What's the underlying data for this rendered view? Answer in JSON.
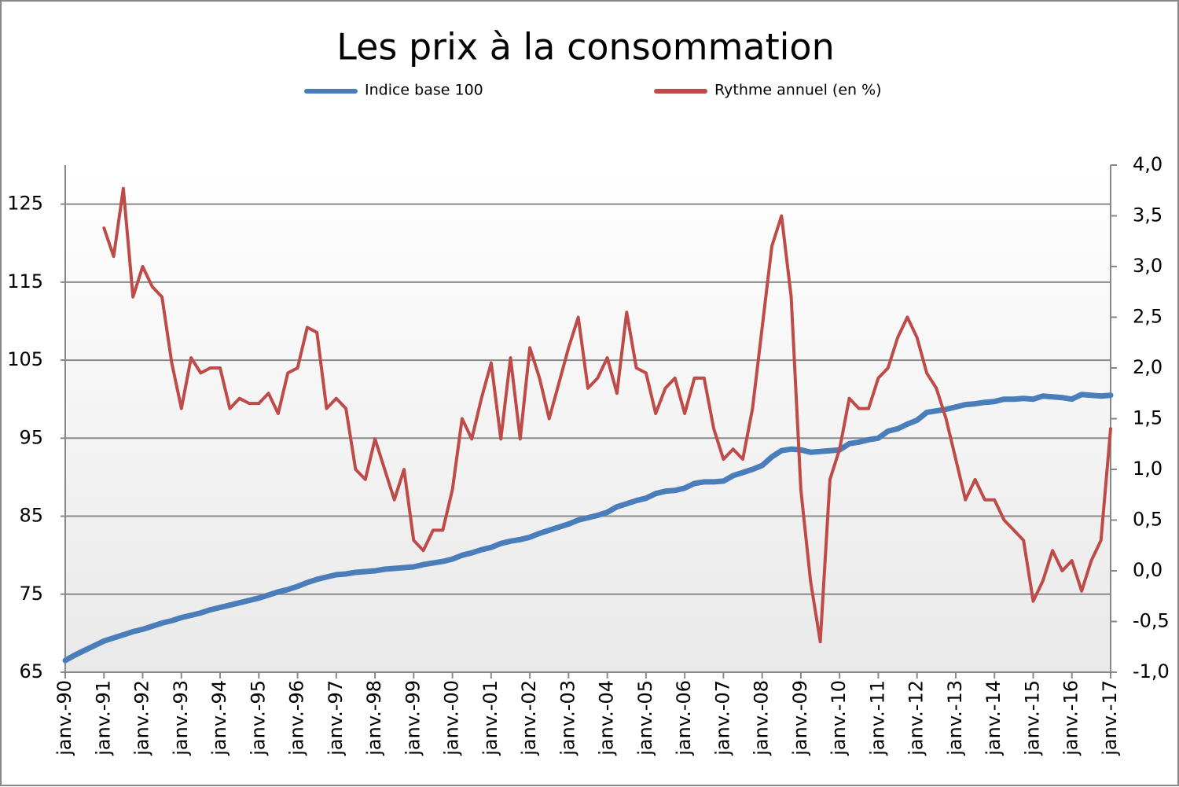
{
  "chart_data": {
    "type": "line",
    "title": "Les prix à la consommation",
    "legend": "top",
    "categories": [
      "janv.-90",
      null,
      null,
      null,
      "janv.-91",
      null,
      null,
      null,
      "janv.-92",
      null,
      null,
      null,
      "janv.-93",
      null,
      null,
      null,
      "janv.-94",
      null,
      null,
      null,
      "janv.-95",
      null,
      null,
      null,
      "janv.-96",
      null,
      null,
      null,
      "janv.-97",
      null,
      null,
      null,
      "janv.-98",
      null,
      null,
      null,
      "janv.-99",
      null,
      null,
      null,
      "janv.-00",
      null,
      null,
      null,
      "janv.-01",
      null,
      null,
      null,
      "janv.-02",
      null,
      null,
      null,
      "janv.-03",
      null,
      null,
      null,
      "janv.-04",
      null,
      null,
      null,
      "janv.-05",
      null,
      null,
      null,
      "janv.-06",
      null,
      null,
      null,
      "janv.-07",
      null,
      null,
      null,
      "janv.-08",
      null,
      null,
      null,
      "janv.-09",
      null,
      null,
      null,
      "janv.-10",
      null,
      null,
      null,
      "janv.-11",
      null,
      null,
      null,
      "janv.-12",
      null,
      null,
      null,
      "janv.-13",
      null,
      null,
      null,
      "janv.-14",
      null,
      null,
      null,
      "janv.-15",
      null,
      null,
      null,
      "janv.-16",
      null,
      null,
      null,
      "janv.-17"
    ],
    "series": [
      {
        "name": "Indice base 100",
        "color": "#4a7ebb",
        "values": [
          66.5,
          67.2,
          67.8,
          68.4,
          69,
          69.4,
          69.8,
          70.2,
          70.5,
          70.9,
          71.3,
          71.6,
          72,
          72.3,
          72.6,
          73,
          73.3,
          73.6,
          73.9,
          74.2,
          74.5,
          74.9,
          75.3,
          75.6,
          76,
          76.5,
          76.9,
          77.2,
          77.5,
          77.6,
          77.8,
          77.9,
          78,
          78.2,
          78.3,
          78.4,
          78.5,
          78.8,
          79,
          79.2,
          79.5,
          80,
          80.3,
          80.7,
          81,
          81.5,
          81.8,
          82,
          82.3,
          82.8,
          83.2,
          83.6,
          84,
          84.5,
          84.8,
          85.1,
          85.5,
          86.2,
          86.6,
          87,
          87.3,
          87.9,
          88.2,
          88.3,
          88.6,
          89.2,
          89.4,
          89.4,
          89.5,
          90.2,
          90.6,
          91,
          91.5,
          92.6,
          93.4,
          93.6,
          93.5,
          93.2,
          93.3,
          93.4,
          93.5,
          94.3,
          94.5,
          94.8,
          95,
          95.9,
          96.2,
          96.8,
          97.3,
          98.3,
          98.5,
          98.7,
          99,
          99.3,
          99.4,
          99.6,
          99.7,
          100,
          100,
          100.1,
          100,
          100.4,
          100.3,
          100.2,
          100,
          100.6,
          100.5,
          100.4,
          100.5
        ]
      },
      {
        "name": "Rythme annuel (en %)",
        "color": "#be4b48",
        "axis": "y2",
        "values": [
          null,
          null,
          null,
          null,
          3.38,
          3.1,
          3.77,
          2.7,
          3.0,
          2.8,
          2.7,
          2.05,
          1.6,
          2.1,
          1.95,
          2.0,
          2.0,
          1.6,
          1.7,
          1.65,
          1.65,
          1.75,
          1.55,
          1.95,
          2.0,
          2.4,
          2.35,
          1.6,
          1.7,
          1.6,
          1.0,
          0.9,
          1.3,
          1.0,
          0.7,
          1.0,
          0.3,
          0.2,
          0.4,
          0.4,
          0.8,
          1.5,
          1.3,
          1.7,
          2.05,
          1.3,
          2.1,
          1.3,
          2.2,
          1.9,
          1.5,
          1.85,
          2.2,
          2.5,
          1.8,
          1.9,
          2.1,
          1.75,
          2.55,
          2.0,
          1.95,
          1.55,
          1.8,
          1.9,
          1.55,
          1.9,
          1.9,
          1.4,
          1.1,
          1.2,
          1.1,
          1.6,
          2.4,
          3.2,
          3.5,
          2.7,
          0.8,
          -0.1,
          -0.7,
          0.9,
          1.2,
          1.7,
          1.6,
          1.6,
          1.9,
          2.0,
          2.3,
          2.5,
          2.3,
          1.95,
          1.8,
          1.5,
          1.1,
          0.7,
          0.9,
          0.7,
          0.7,
          0.5,
          0.4,
          0.3,
          -0.3,
          -0.1,
          0.2,
          0.0,
          0.1,
          -0.2,
          0.1,
          0.3,
          1.4
        ]
      }
    ],
    "ylim": [
      65,
      130
    ],
    "yticks": [
      65,
      75,
      85,
      95,
      105,
      115,
      125
    ],
    "y2lim": [
      -1,
      4
    ],
    "y2ticks": [
      {
        "value": -1,
        "label": "-1,0"
      },
      {
        "value": -0.5,
        "label": "-0,5"
      },
      {
        "value": 0,
        "label": "0,0"
      },
      {
        "value": 0.5,
        "label": "0,5"
      },
      {
        "value": 1,
        "label": "1,0"
      },
      {
        "value": 1.5,
        "label": "1,5"
      },
      {
        "value": 2,
        "label": "2,0"
      },
      {
        "value": 2.5,
        "label": "2,5"
      },
      {
        "value": 3,
        "label": "3,0"
      },
      {
        "value": 3.5,
        "label": "3,5"
      },
      {
        "value": 4,
        "label": "4,0"
      }
    ],
    "grid": true
  }
}
